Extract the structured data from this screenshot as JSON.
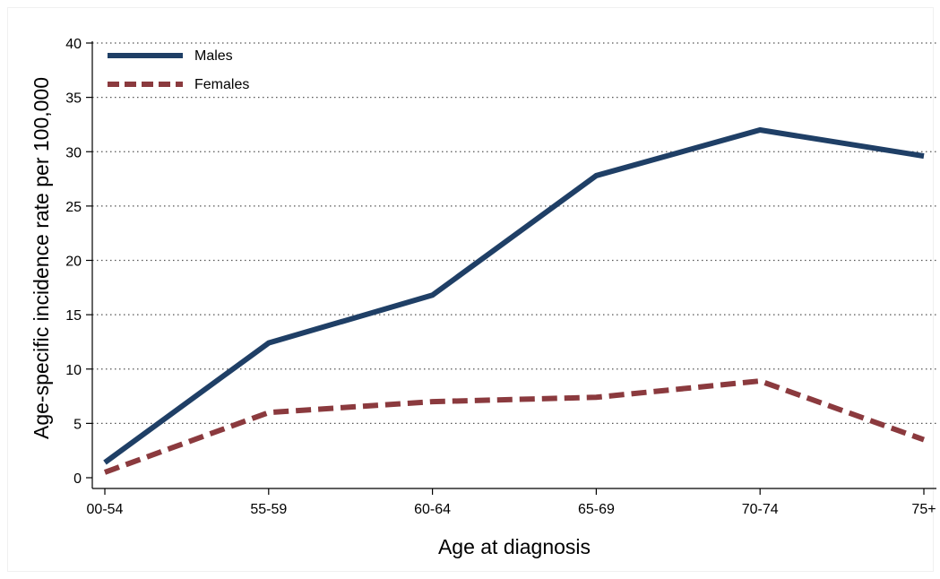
{
  "chart_data": {
    "type": "line",
    "title": "",
    "xlabel": "Age at diagnosis",
    "ylabel": "Age-specific incidence rate per 100,000",
    "categories": [
      "00-54",
      "55-59",
      "60-64",
      "65-69",
      "70-74",
      "75+"
    ],
    "ylim": [
      0,
      40
    ],
    "yticks": [
      0,
      5,
      10,
      15,
      20,
      25,
      30,
      35,
      40
    ],
    "grid": true,
    "legend_position": "top-left",
    "series": [
      {
        "name": "Males",
        "values": [
          1.4,
          12.4,
          16.8,
          27.8,
          32.0,
          29.6
        ],
        "color": "#1f3f66",
        "style": "solid"
      },
      {
        "name": "Females",
        "values": [
          0.5,
          6.0,
          7.0,
          7.4,
          8.9,
          3.5
        ],
        "color": "#8b3a3e",
        "style": "dashed"
      }
    ]
  }
}
